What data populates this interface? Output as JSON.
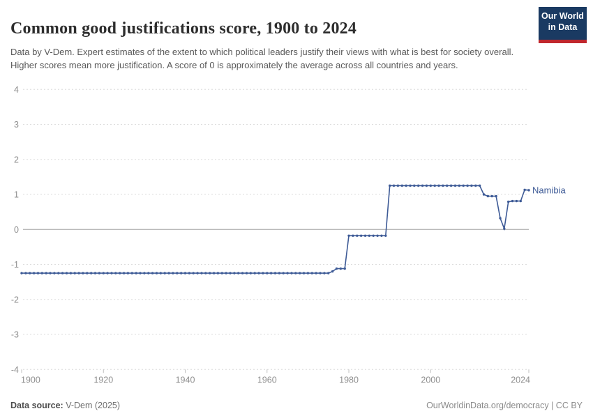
{
  "header": {
    "title": "Common good justifications score, 1900 to 2024",
    "subtitle": "Data by V-Dem. Expert estimates of the extent to which political leaders justify their views with what is best for society overall. Higher scores mean more justification. A score of 0 is approximately the average across all countries and years.",
    "logo": {
      "line1": "Our World",
      "line2": "in Data",
      "bg_color": "#1a3a62",
      "stripe_color": "#c0272d"
    }
  },
  "footer": {
    "source_label": "Data source:",
    "source_value": "V-Dem (2025)",
    "attribution": "OurWorldinData.org/democracy | CC BY"
  },
  "chart_data": {
    "type": "line",
    "title": "Common good justifications score, 1900 to 2024",
    "entity": "Namibia",
    "color": "#3d5a96",
    "grid": "dashed-horizontal",
    "legend_position": "end-of-line-label",
    "ylim": [
      -4,
      4
    ],
    "yticks": [
      4,
      3,
      2,
      1,
      0,
      -1,
      -2,
      -3,
      -4
    ],
    "xticks": [
      1900,
      1920,
      1940,
      1960,
      1980,
      2000,
      2024
    ],
    "year_start": 1900,
    "year_end": 2024,
    "values": [
      -1.25,
      -1.25,
      -1.25,
      -1.25,
      -1.25,
      -1.25,
      -1.25,
      -1.25,
      -1.25,
      -1.25,
      -1.25,
      -1.25,
      -1.25,
      -1.25,
      -1.25,
      -1.25,
      -1.25,
      -1.25,
      -1.25,
      -1.25,
      -1.25,
      -1.25,
      -1.25,
      -1.25,
      -1.25,
      -1.25,
      -1.25,
      -1.25,
      -1.25,
      -1.25,
      -1.25,
      -1.25,
      -1.25,
      -1.25,
      -1.25,
      -1.25,
      -1.25,
      -1.25,
      -1.25,
      -1.25,
      -1.25,
      -1.25,
      -1.25,
      -1.25,
      -1.25,
      -1.25,
      -1.25,
      -1.25,
      -1.25,
      -1.25,
      -1.25,
      -1.25,
      -1.25,
      -1.25,
      -1.25,
      -1.25,
      -1.25,
      -1.25,
      -1.25,
      -1.25,
      -1.25,
      -1.25,
      -1.25,
      -1.25,
      -1.25,
      -1.25,
      -1.25,
      -1.25,
      -1.25,
      -1.25,
      -1.25,
      -1.25,
      -1.25,
      -1.25,
      -1.25,
      -1.25,
      -1.2,
      -1.12,
      -1.12,
      -1.12,
      -0.18,
      -0.18,
      -0.18,
      -0.18,
      -0.18,
      -0.18,
      -0.18,
      -0.18,
      -0.18,
      -0.18,
      1.25,
      1.25,
      1.25,
      1.25,
      1.25,
      1.25,
      1.25,
      1.25,
      1.25,
      1.25,
      1.25,
      1.25,
      1.25,
      1.25,
      1.25,
      1.25,
      1.25,
      1.25,
      1.25,
      1.25,
      1.25,
      1.25,
      1.25,
      1.0,
      0.95,
      0.95,
      0.95,
      0.32,
      0.02,
      0.79,
      0.81,
      0.81,
      0.81,
      1.13,
      1.12
    ]
  }
}
